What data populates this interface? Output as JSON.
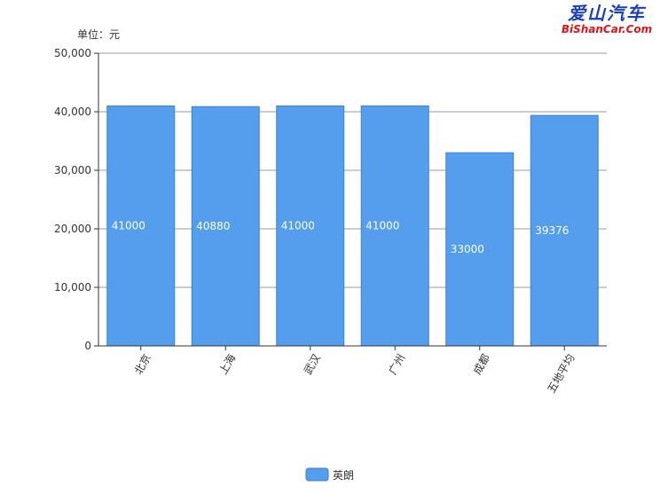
{
  "watermark": {
    "cn": "爱山汽车",
    "en": "BiShanCar.Com"
  },
  "chart_data": {
    "type": "bar",
    "unit_label": "单位：元",
    "categories": [
      "北京",
      "上海",
      "武汉",
      "广州",
      "成都",
      "五地平均"
    ],
    "series": [
      {
        "name": "英朗",
        "values": [
          41000,
          40880,
          41000,
          41000,
          33000,
          39376
        ],
        "color": "#559ded"
      }
    ],
    "data_labels": [
      "41000",
      "40880",
      "41000",
      "41000",
      "33000",
      "39376"
    ],
    "yticks": [
      "0",
      "10,000",
      "20,000",
      "30,000",
      "40,000",
      "50,000"
    ],
    "ylim": [
      0,
      50000
    ],
    "grid": true,
    "legend_position": "bottom-center"
  }
}
